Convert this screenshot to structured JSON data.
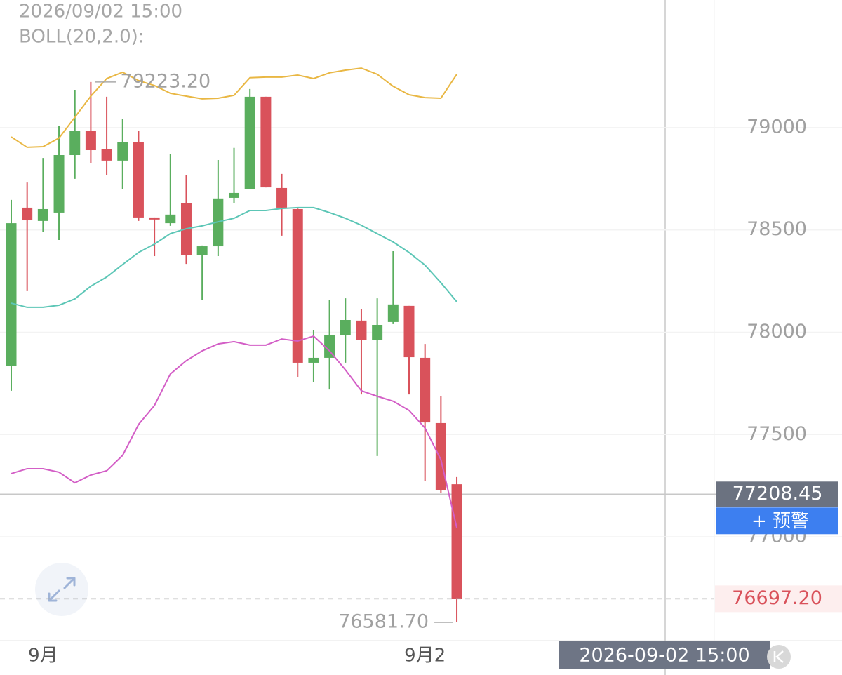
{
  "chart_data": {
    "type": "candlestick",
    "title": "2026/09/02 15:00",
    "indicator": "BOLL(20,2.0):",
    "categories": [
      null,
      null,
      "9月",
      null,
      null,
      null,
      null,
      null,
      null,
      null,
      null,
      null,
      null,
      null,
      null,
      null,
      null,
      null,
      null,
      null,
      null,
      null,
      null,
      null,
      null,
      null,
      "9月2",
      null,
      null
    ],
    "open": [
      77834,
      78609,
      78544,
      78585,
      78866,
      78983,
      78894,
      78839,
      78928,
      78561,
      78533,
      78630,
      78376,
      78420,
      78657,
      78698,
      79151,
      78705,
      78602,
      77851,
      77875,
      77988,
      78057,
      77961,
      78050,
      78129,
      77875,
      77556,
      77257
    ],
    "high": [
      78647,
      78732,
      78852,
      79007,
      79185,
      79223.2,
      79151,
      79041,
      78986,
      78561,
      78870,
      78767,
      78424,
      78842,
      78901,
      79189,
      79151,
      78774,
      78612,
      78012,
      78156,
      78166,
      78115,
      78166,
      78396,
      78129,
      77943,
      77686,
      77292
    ],
    "low": [
      77714,
      78201,
      78492,
      78451,
      78750,
      78828,
      78767,
      78698,
      78544,
      78372,
      78520,
      78334,
      78156,
      78372,
      78630,
      78698,
      78708,
      78472,
      77779,
      77755,
      77720,
      77851,
      77696,
      77395,
      78040,
      77696,
      77274,
      77216,
      76581.7
    ],
    "close": [
      78533,
      78547,
      78602,
      78866,
      78983,
      78890,
      78839,
      78931,
      78561,
      78551,
      78575,
      78379,
      78420,
      78654,
      78681,
      79151,
      78708,
      78609,
      77851,
      77875,
      77988,
      78060,
      77961,
      78036,
      78136,
      77878,
      77559,
      77230,
      76697.2
    ],
    "up_color": "#5aae5e",
    "down_color": "#d9525b",
    "bands": [
      {
        "color": "#e9b743",
        "values": [
          78955,
          78904,
          78907,
          78949,
          79051,
          79154,
          79240,
          79271,
          79230,
          79206,
          79168,
          79154,
          79141,
          79144,
          79158,
          79244,
          79247,
          79247,
          79257,
          79240,
          79268,
          79281,
          79291,
          79261,
          79202,
          79161,
          79147,
          79144,
          79261
        ]
      },
      {
        "color": "#5cc6b6",
        "values": [
          78142,
          78122,
          78122,
          78132,
          78163,
          78225,
          78270,
          78331,
          78390,
          78431,
          78482,
          78506,
          78520,
          78540,
          78557,
          78595,
          78595,
          78605,
          78609,
          78609,
          78585,
          78557,
          78523,
          78482,
          78441,
          78390,
          78328,
          78242,
          78149
        ]
      },
      {
        "color": "#d35ec6",
        "values": [
          77309,
          77333,
          77333,
          77316,
          77264,
          77302,
          77323,
          77398,
          77549,
          77642,
          77796,
          77861,
          77909,
          77943,
          77954,
          77937,
          77937,
          77967,
          77957,
          77981,
          77909,
          77816,
          77714,
          77687,
          77663,
          77618,
          77532,
          77377,
          77044
        ]
      }
    ],
    "ylim": [
      76496,
      79624
    ],
    "yticks": [
      79000,
      78500,
      78000,
      77500,
      77000
    ],
    "grid": true,
    "annotations": [
      {
        "value": 79223.2,
        "label": "79223.20",
        "index": 5,
        "side": "right"
      },
      {
        "value": 76581.7,
        "label": "76581.70",
        "index": 28,
        "side": "left"
      }
    ],
    "crosshair": {
      "value": 77208.45,
      "time": "2026-09-02 15:00"
    },
    "last_price": {
      "value": 76697.2,
      "label": "76697.20"
    },
    "alert_button": "+ 预警"
  }
}
